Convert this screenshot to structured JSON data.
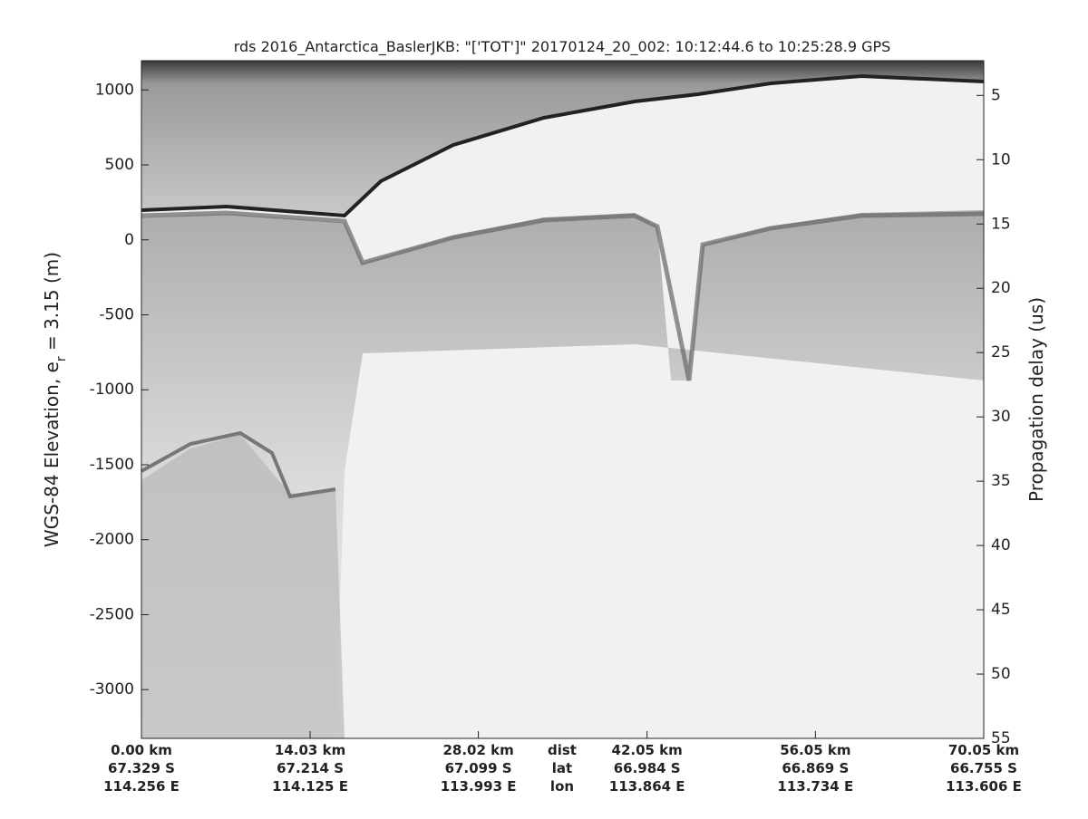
{
  "chart_data": {
    "type": "echogram",
    "title": "rds 2016_Antarctica_BaslerJKB: \"['TOT']\"  20170124_20_002: 10:12:44.6 to 10:25:28.9 GPS",
    "ylabel": [
      "WGS-84 Elevation, e",
      "r",
      " = 3.15 (m)"
    ],
    "y2label": "Propagation delay (us)",
    "xlim": [
      0,
      70.05
    ],
    "xticks": [
      {
        "value": 0,
        "label": "0.00 km"
      },
      {
        "value": 14.03,
        "label": "14.03 km"
      },
      {
        "value": 28.02,
        "label": "28.02 km"
      },
      {
        "value": 42.05,
        "label": "42.05 km"
      },
      {
        "value": 56.05,
        "label": "56.05 km"
      },
      {
        "value": 70.05,
        "label": "70.05 km"
      }
    ],
    "lat_labels": [
      "67.329 S",
      "67.214 S",
      "67.099 S",
      "66.984 S",
      "66.869 S",
      "66.755 S"
    ],
    "lon_labels": [
      "114.256 E",
      "114.125 E",
      "113.993 E",
      "113.864 E",
      "113.734 E",
      "113.606 E"
    ],
    "row_labels": [
      "dist",
      "lat",
      "lon"
    ],
    "ylim": [
      -3325,
      1195
    ],
    "yticks": [
      -3000,
      -2500,
      -2000,
      -1500,
      -1000,
      -500,
      0,
      500,
      1000
    ],
    "y2lim": [
      2.3,
      55
    ],
    "y2reverse": true,
    "y2ticks": [
      5,
      10,
      15,
      20,
      25,
      30,
      35,
      40,
      45,
      50,
      55
    ]
  }
}
